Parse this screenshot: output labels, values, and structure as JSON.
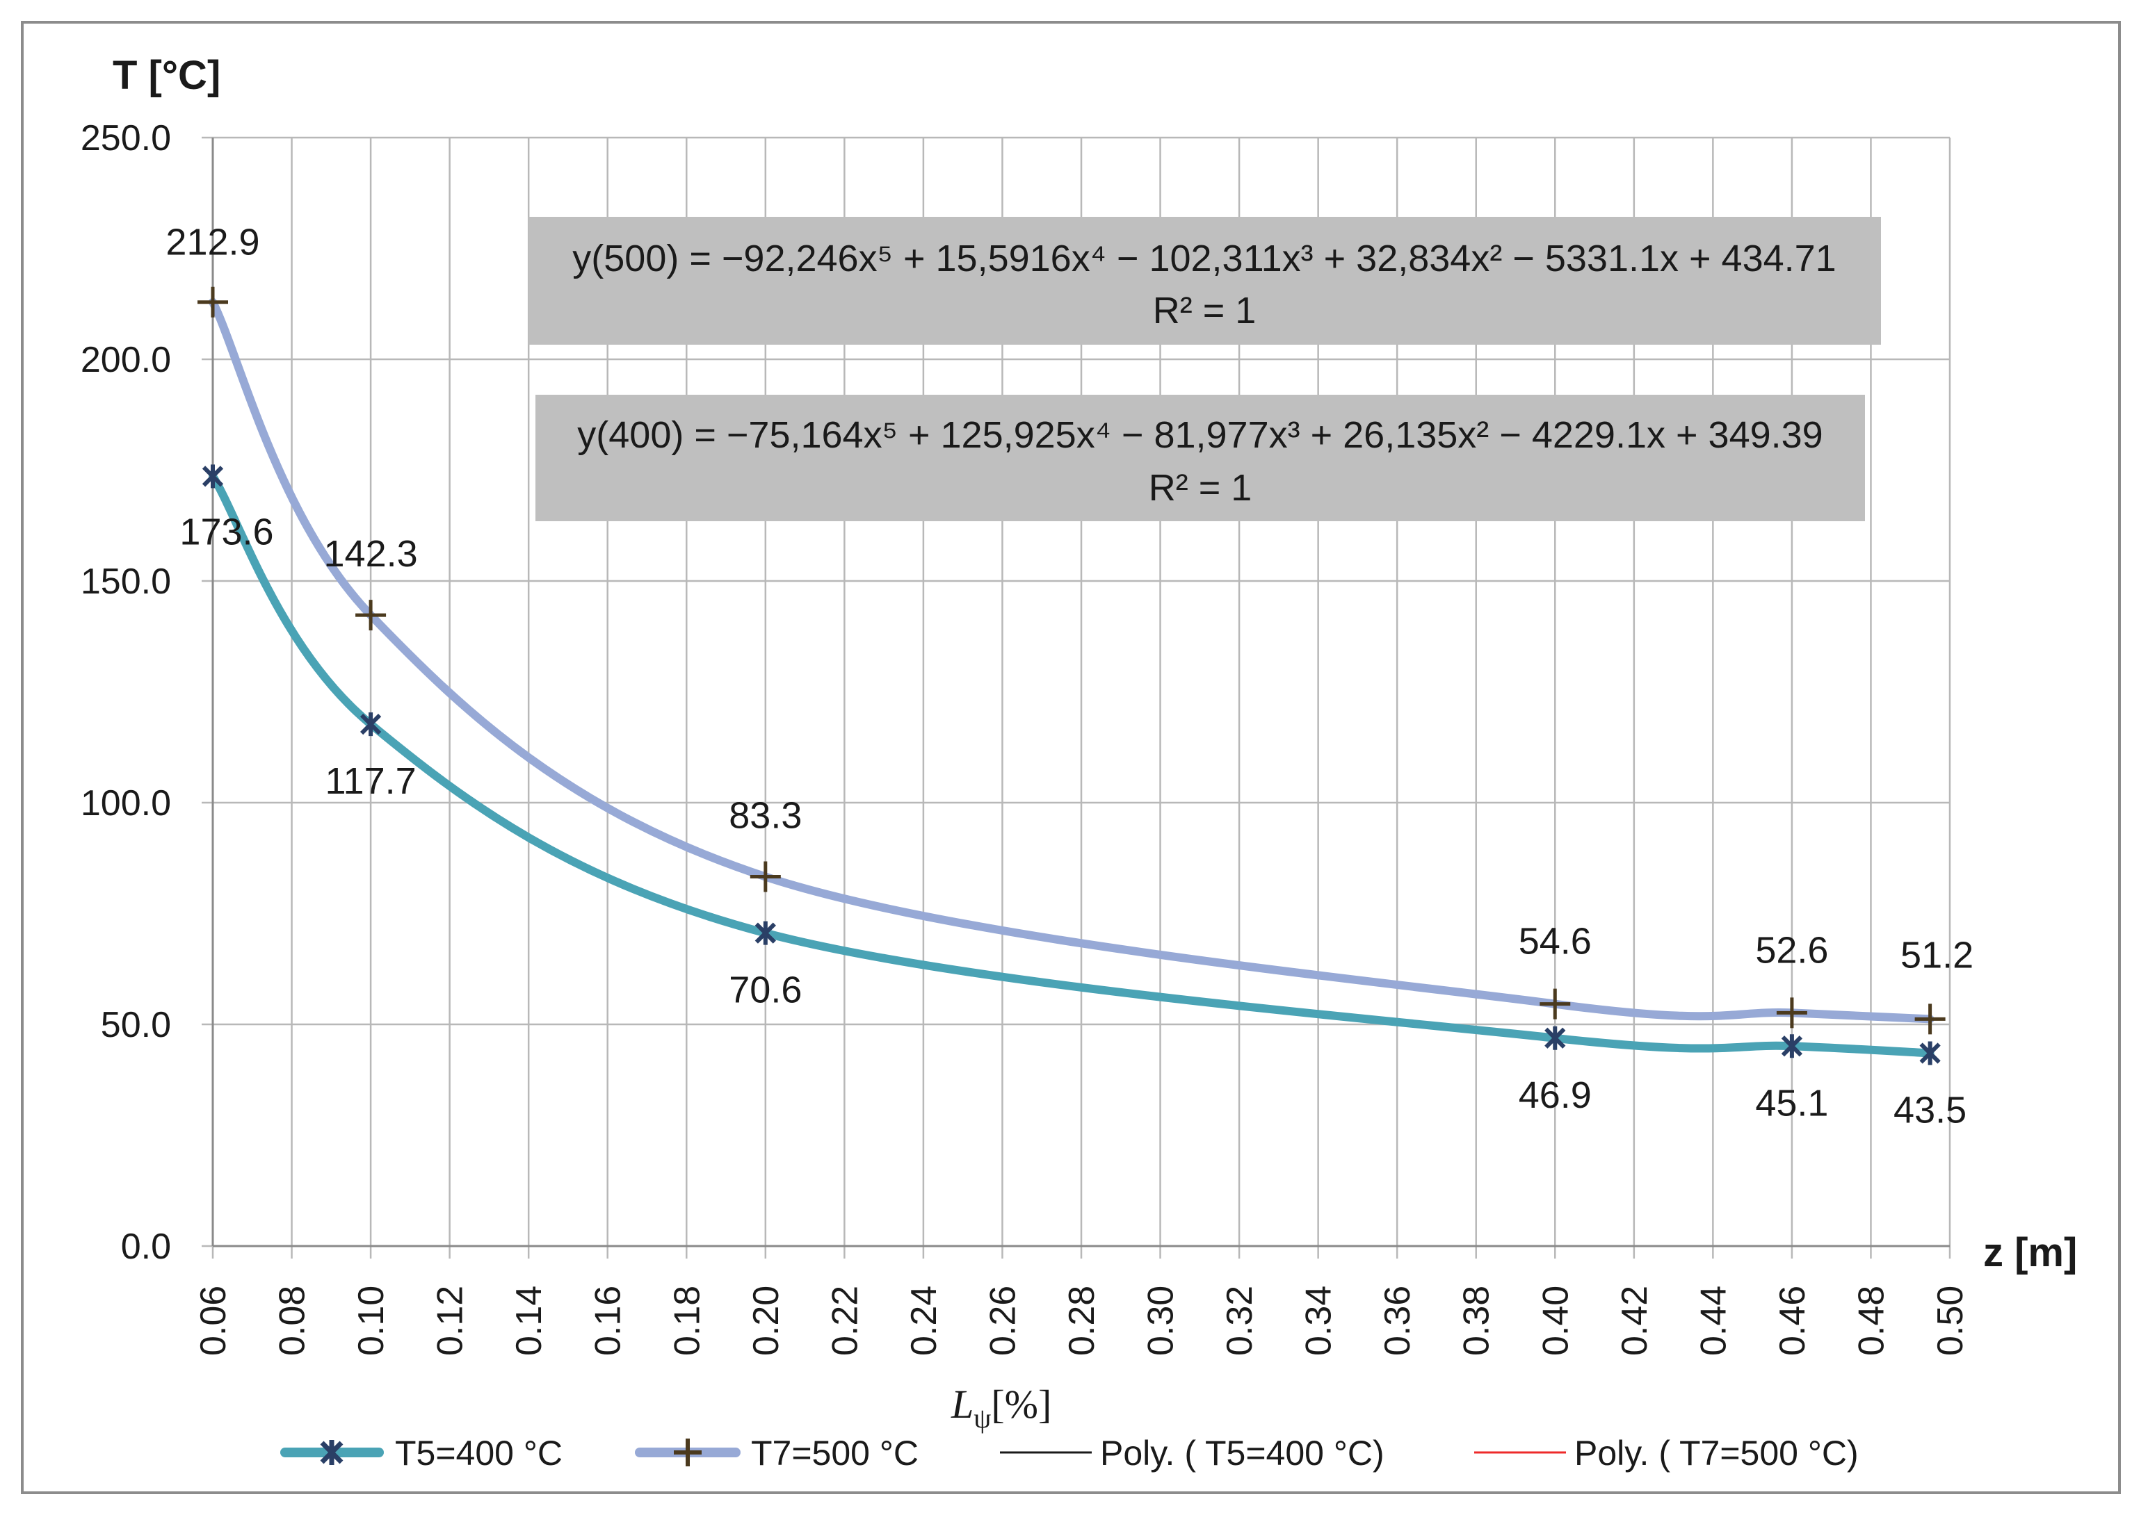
{
  "chart_data": {
    "type": "line",
    "ylabel": "T [°C]",
    "xlabel": "z [m]",
    "secondary_xlabel": "[%]",
    "secondary_xlabel_symbol": "L",
    "secondary_xlabel_subscript": "ψ",
    "ylim": [
      0,
      250
    ],
    "xlim": [
      0.06,
      0.5
    ],
    "y_ticks": [
      "0.0",
      "50.0",
      "100.0",
      "150.0",
      "200.0",
      "250.0"
    ],
    "x_ticks": [
      "0.06",
      "0.08",
      "0.10",
      "0.12",
      "0.14",
      "0.16",
      "0.18",
      "0.20",
      "0.22",
      "0.24",
      "0.26",
      "0.28",
      "0.30",
      "0.32",
      "0.34",
      "0.36",
      "0.38",
      "0.40",
      "0.42",
      "0.44",
      "0.46",
      "0.48",
      "0.50"
    ],
    "grid": true,
    "series": [
      {
        "name": "T5=400 °C",
        "color": "#4aa3b5",
        "marker": "x",
        "marker_color": "#2a3f66",
        "x": [
          0.06,
          0.1,
          0.2,
          0.4,
          0.46,
          0.495
        ],
        "values": [
          173.6,
          117.7,
          70.6,
          46.9,
          45.1,
          43.5
        ],
        "labels": [
          "173.6",
          "117.7",
          "70.6",
          "46.9",
          "45.1",
          "43.5"
        ]
      },
      {
        "name": "T7=500 °C",
        "color": "#97a9d6",
        "marker": "+",
        "marker_color": "#4b3a1e",
        "x": [
          0.06,
          0.1,
          0.2,
          0.4,
          0.46,
          0.495
        ],
        "values": [
          212.9,
          142.3,
          83.3,
          54.6,
          52.6,
          51.2
        ],
        "labels": [
          "212.9",
          "142.3",
          "83.3",
          "54.6",
          "52.6",
          "51.2"
        ]
      }
    ],
    "trendlines": [
      {
        "name": "Poly. ( T5=400 °C)",
        "color": "#1a1a1a",
        "of_series": 0
      },
      {
        "name": "Poly. ( T7=500 °C)",
        "color": "#ee2a2a",
        "of_series": 1
      }
    ],
    "annotations": [
      {
        "equation": "y(500) = −92,246x⁵ + 15,5916x⁴ − 102,311x³ + 32,834x² − 5331.1x + 434.71",
        "r2": "R² = 1"
      },
      {
        "equation": "y(400) = −75,164x⁵ + 125,925x⁴ − 81,977x³ + 26,135x² − 4229.1x + 349.39",
        "r2": "R² = 1"
      }
    ]
  }
}
